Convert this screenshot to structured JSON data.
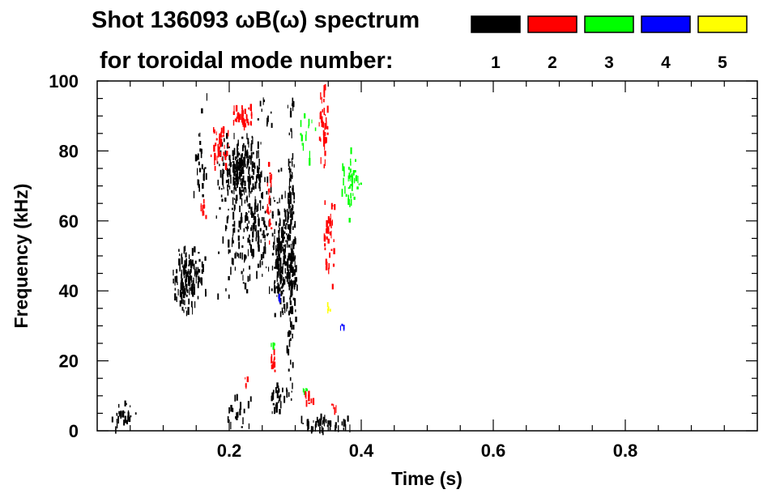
{
  "chart_data": {
    "type": "heatmap",
    "title": "Shot 136093 ωB(ω) spectrum",
    "subtitle": "for toroidal mode number:",
    "xlabel": "Time (s)",
    "ylabel": "Frequency (kHz)",
    "xlim": [
      0.0,
      1.0
    ],
    "ylim": [
      0,
      100
    ],
    "xticks": [
      0.2,
      0.4,
      0.6,
      0.8
    ],
    "xtick_labels": [
      "0.2",
      "0.4",
      "0.6",
      "0.8"
    ],
    "yticks": [
      0,
      20,
      40,
      60,
      80,
      100
    ],
    "ytick_labels": [
      "0",
      "20",
      "40",
      "60",
      "80",
      "100"
    ],
    "grid": false,
    "legend_placement": "top-right",
    "legend": [
      {
        "label": "1",
        "color": "#000000"
      },
      {
        "label": "2",
        "color": "#ff0000"
      },
      {
        "label": "3",
        "color": "#00ff00"
      },
      {
        "label": "4",
        "color": "#0000ff"
      },
      {
        "label": "5",
        "color": "#ffff00"
      }
    ],
    "series": [
      {
        "label": "1",
        "color": "#000000",
        "regions": [
          {
            "t0": 0.02,
            "t1": 0.06,
            "f0": 1,
            "f1": 9,
            "density": 0.55
          },
          {
            "t0": 0.11,
            "t1": 0.165,
            "f0": 33,
            "f1": 55,
            "density": 0.75
          },
          {
            "t0": 0.14,
            "t1": 0.17,
            "f0": 62,
            "f1": 100,
            "density": 0.15
          },
          {
            "t0": 0.18,
            "t1": 0.25,
            "f0": 64,
            "f1": 86,
            "density": 0.8
          },
          {
            "t0": 0.17,
            "t1": 0.29,
            "f0": 35,
            "f1": 80,
            "density": 0.25
          },
          {
            "t0": 0.26,
            "t1": 0.305,
            "f0": 30,
            "f1": 70,
            "density": 0.75
          },
          {
            "t0": 0.285,
            "t1": 0.3,
            "f0": 0,
            "f1": 100,
            "density": 0.5
          },
          {
            "t0": 0.195,
            "t1": 0.245,
            "f0": 1,
            "f1": 12,
            "density": 0.2
          },
          {
            "t0": 0.26,
            "t1": 0.285,
            "f0": 5,
            "f1": 15,
            "density": 0.7
          },
          {
            "t0": 0.3,
            "t1": 0.39,
            "f0": 0,
            "f1": 5,
            "density": 0.7
          },
          {
            "t0": 0.235,
            "t1": 0.27,
            "f0": 85,
            "f1": 100,
            "density": 0.12
          }
        ]
      },
      {
        "label": "2",
        "color": "#ff0000",
        "regions": [
          {
            "t0": 0.17,
            "t1": 0.2,
            "f0": 75,
            "f1": 88,
            "density": 0.7
          },
          {
            "t0": 0.2,
            "t1": 0.24,
            "f0": 86,
            "f1": 95,
            "density": 0.75
          },
          {
            "t0": 0.15,
            "t1": 0.17,
            "f0": 60,
            "f1": 68,
            "density": 0.4
          },
          {
            "t0": 0.255,
            "t1": 0.265,
            "f0": 50,
            "f1": 80,
            "density": 0.55
          },
          {
            "t0": 0.335,
            "t1": 0.35,
            "f0": 75,
            "f1": 100,
            "density": 0.7
          },
          {
            "t0": 0.34,
            "t1": 0.36,
            "f0": 40,
            "f1": 70,
            "density": 0.35
          },
          {
            "t0": 0.22,
            "t1": 0.23,
            "f0": 12,
            "f1": 16,
            "density": 0.6
          },
          {
            "t0": 0.26,
            "t1": 0.275,
            "f0": 16,
            "f1": 24,
            "density": 0.55
          },
          {
            "t0": 0.31,
            "t1": 0.33,
            "f0": 7,
            "f1": 12,
            "density": 0.55
          },
          {
            "t0": 0.35,
            "t1": 0.365,
            "f0": 5,
            "f1": 9,
            "density": 0.45
          }
        ]
      },
      {
        "label": "3",
        "color": "#00ff00",
        "regions": [
          {
            "t0": 0.3,
            "t1": 0.33,
            "f0": 75,
            "f1": 95,
            "density": 0.15
          },
          {
            "t0": 0.365,
            "t1": 0.4,
            "f0": 60,
            "f1": 82,
            "density": 0.35
          },
          {
            "t0": 0.26,
            "t1": 0.27,
            "f0": 24,
            "f1": 29,
            "density": 0.5
          },
          {
            "t0": 0.31,
            "t1": 0.32,
            "f0": 11,
            "f1": 13,
            "density": 0.5
          }
        ]
      },
      {
        "label": "4",
        "color": "#0000ff",
        "regions": [
          {
            "t0": 0.27,
            "t1": 0.28,
            "f0": 37,
            "f1": 40,
            "density": 0.2
          },
          {
            "t0": 0.365,
            "t1": 0.375,
            "f0": 29,
            "f1": 31,
            "density": 0.2
          }
        ]
      },
      {
        "label": "5",
        "color": "#ffff00",
        "regions": [
          {
            "t0": 0.345,
            "t1": 0.355,
            "f0": 32,
            "f1": 37,
            "density": 0.45
          }
        ]
      }
    ]
  }
}
